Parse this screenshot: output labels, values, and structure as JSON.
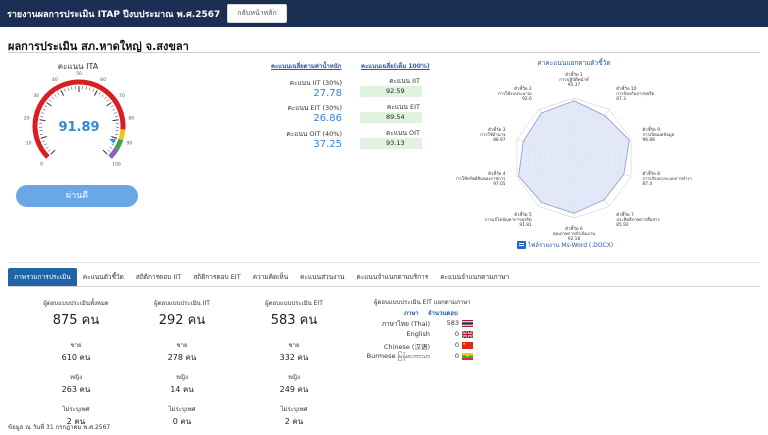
{
  "header": {
    "title": "รายงานผลการประเมิน ITAP ปีงบประมาณ พ.ศ.2567",
    "home_button": "กลับหน้าหลัก"
  },
  "org_title": "ผลการประเมิน สภ.หาดใหญ่ จ.สงขลา",
  "ita": {
    "label": "คะแนน ITA",
    "score": "91.89",
    "gauge_ticks": [
      "0",
      "10",
      "20",
      "30",
      "40",
      "50",
      "60",
      "70",
      "80",
      "90",
      "100"
    ],
    "result_label": "ผ่านดี",
    "score_value": 91.89
  },
  "weighted": {
    "heading": "คะแนนเฉลี่ยตามค่าน้ำหนัก",
    "items": [
      {
        "label": "คะแนน IIT (30%)",
        "value": "27.78"
      },
      {
        "label": "คะแนน EIT (30%)",
        "value": "26.86"
      },
      {
        "label": "คะแนน OIT (40%)",
        "value": "37.25"
      }
    ]
  },
  "full": {
    "heading": "คะแนนเฉลี่ย(เต็ม 100%)",
    "items": [
      {
        "label": "คะแนน IIT",
        "value": "92.59"
      },
      {
        "label": "คะแนน EIT",
        "value": "89.54"
      },
      {
        "label": "คะแนน OIT",
        "value": "93.13"
      }
    ]
  },
  "radar": {
    "title": "ค่าคะแนนแยกตามตัวชี้วัด",
    "indicators": [
      {
        "id": "ตัวชี้วัด 1",
        "name": "การปฏิบัติหน้าที่",
        "score": "95.37"
      },
      {
        "id": "ตัวชี้วัด 10",
        "name": "การป้องกันการทุจริต",
        "score": "87.3"
      },
      {
        "id": "ตัวชี้วัด 9",
        "name": "การเปิดเผยข้อมูล",
        "score": "96.88"
      },
      {
        "id": "ตัวชี้วัด 8",
        "name": "การปรับปรุงระบบการทำงาน",
        "score": "87.4"
      },
      {
        "id": "ตัวชี้วัด 7",
        "name": "ประสิทธิภาพการสื่อสาร",
        "score": "85.92"
      },
      {
        "id": "ตัวชี้วัด 6",
        "name": "คุณภาพการดำเนินงาน",
        "score": "92.18"
      },
      {
        "id": "ตัวชี้วัด 5",
        "name": "การแก้ไขปัญหาการทุจริต",
        "score": "91.81"
      },
      {
        "id": "ตัวชี้วัด 4",
        "name": "การใช้ทรัพย์สินของราชการ",
        "score": "97.05"
      },
      {
        "id": "ตัวชี้วัด 3",
        "name": "การใช้อำนาจ",
        "score": "88.97"
      },
      {
        "id": "ตัวชี้วัด 2",
        "name": "การใช้งบประมาณ",
        "score": "92.6"
      }
    ],
    "fill_color": "#dde4f7",
    "line_color": "#8898c8"
  },
  "docx_link": "ไฟล์รายงาน Ms-Word (.DOCX)",
  "tabs": [
    "ภาพรวมการประเมิน",
    "คะแนนตัวชี้วัด",
    "สถิติการตอบ IIT",
    "สถิติการตอบ EIT",
    "ความคิดเห็น",
    "คะแนนส่วนงาน",
    "คะแนนจำแนกตามบริการ",
    "คะแนนจำแนกตามภาษา"
  ],
  "stats": [
    {
      "title": "ผู้ตอบแบบประเมินทั้งหมด",
      "total": "875 คน",
      "male_label": "ชาย",
      "male": "610 คน",
      "female_label": "หญิง",
      "female": "263 คน",
      "na_label": "ไม่ระบุเพศ",
      "na": "2 คน"
    },
    {
      "title": "ผู้ตอบแบบประเมิน IIT",
      "total": "292 คน",
      "male_label": "ชาย",
      "male": "278 คน",
      "female_label": "หญิง",
      "female": "14 คน",
      "na_label": "ไม่ระบุเพศ",
      "na": "0 คน"
    },
    {
      "title": "ผู้ตอบแบบประเมิน EIT",
      "total": "583 คน",
      "male_label": "ชาย",
      "male": "332 คน",
      "female_label": "หญิง",
      "female": "249 คน",
      "na_label": "ไม่ระบุเพศ",
      "na": "2 คน"
    }
  ],
  "languages": {
    "title": "ผู้ตอบแบบประเมิน EIT แยกตามภาษา",
    "col_lang": "ภาษา",
    "col_count": "จำนวนตอบ",
    "rows": [
      {
        "name": "ภาษาไทย (Thai)",
        "count": "583",
        "flag": "thai-flag-icon"
      },
      {
        "name": "English",
        "count": "0",
        "flag": "uk-flag-icon"
      },
      {
        "name": "Chinese (汉语)",
        "count": "0",
        "flag": "china-flag-icon"
      },
      {
        "name": "Burmese မြန်မာဘာသာ",
        "count": "0",
        "flag": "myanmar-flag-icon"
      }
    ]
  },
  "footer": "ข้อมูล ณ วันที่ 31 กรกฎาคม พ.ศ.2567"
}
